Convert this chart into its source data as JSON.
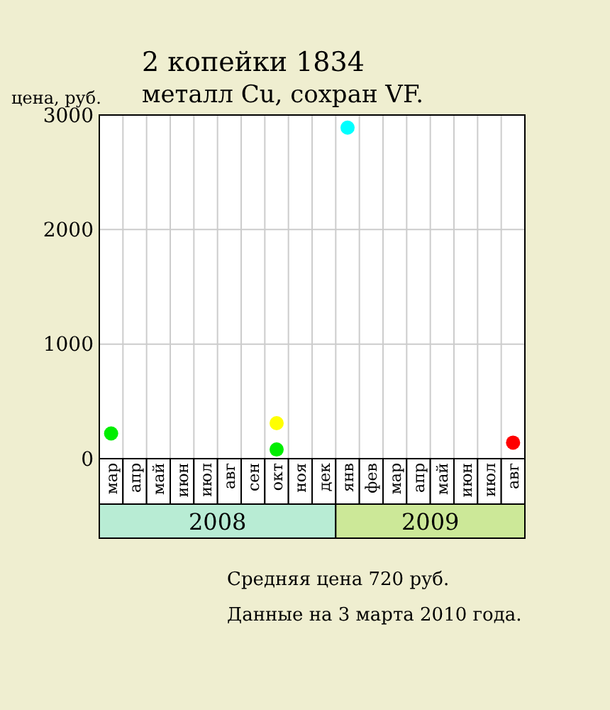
{
  "chart_data": {
    "type": "scatter",
    "title": "2 копейки 1834",
    "subtitle": "металл Cu, сохран VF.",
    "ylabel": "цена, руб.",
    "categories": [
      "мар",
      "апр",
      "май",
      "июн",
      "июл",
      "авг",
      "сен",
      "окт",
      "ноя",
      "дек",
      "янв",
      "фев",
      "мар",
      "апр",
      "май",
      "июн",
      "июл",
      "авг"
    ],
    "series": [
      {
        "color": "#00ee00",
        "values": [
          220,
          null,
          null,
          null,
          null,
          null,
          null,
          80,
          null,
          null,
          null,
          null,
          null,
          null,
          null,
          null,
          null,
          null
        ]
      },
      {
        "color": "#00ffff",
        "values": [
          null,
          null,
          null,
          null,
          null,
          null,
          null,
          null,
          null,
          null,
          2890,
          null,
          null,
          null,
          null,
          null,
          null,
          null
        ]
      },
      {
        "color": "#ff0000",
        "values": [
          null,
          null,
          null,
          null,
          null,
          null,
          null,
          null,
          null,
          null,
          null,
          null,
          null,
          null,
          null,
          null,
          null,
          140
        ]
      },
      {
        "color": "#ffff00",
        "values": [
          null,
          null,
          null,
          null,
          null,
          null,
          null,
          310,
          null,
          null,
          null,
          null,
          null,
          null,
          null,
          null,
          null,
          null
        ]
      }
    ],
    "ylim": [
      0,
      3000
    ],
    "yticks": [
      0,
      1000,
      2000,
      3000
    ],
    "grid": true,
    "marker": "circle",
    "annotations": [
      "2008",
      "2009",
      "Средняя цена 720 руб.",
      "Данные на 3 марта 2010 года."
    ]
  }
}
